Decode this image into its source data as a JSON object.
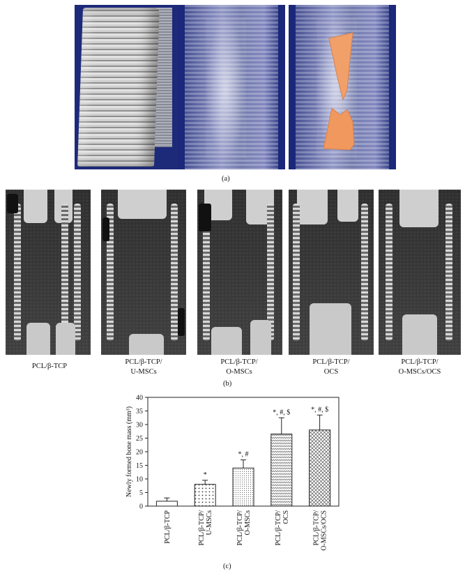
{
  "panel_labels": {
    "a": "(a)",
    "b": "(b)",
    "c": "(c)"
  },
  "panel_b_captions": [
    [
      "PCL/β-TCP"
    ],
    [
      "PCL/β-TCP/",
      "U-MSCs"
    ],
    [
      "PCL/β-TCP/",
      "O-MSCs"
    ],
    [
      "PCL/β-TCP/",
      "OCS"
    ],
    [
      "PCL/β-TCP/",
      "O-MSCs/OCS"
    ]
  ],
  "colors": {
    "render_background": "#1b2879",
    "new_bone_highlight": "#f2a06a",
    "ct_background": "#3c3c3c"
  },
  "chart_data": {
    "type": "bar",
    "ylabel": "Newly formed bone mass (mm³)",
    "ylim": [
      0,
      40
    ],
    "yticks": [
      0,
      5,
      10,
      15,
      20,
      25,
      30,
      35,
      40
    ],
    "categories": [
      [
        "PCL/β-TCP"
      ],
      [
        "PCL/β-TCP/",
        "U-MSCs"
      ],
      [
        "PCL/β-TCP/",
        "O-MSCs"
      ],
      [
        "PCL/β-TCP/",
        "OCS"
      ],
      [
        "PCL/β-TCP/",
        "O-MSCs/OCS"
      ]
    ],
    "values": [
      1.8,
      8.0,
      14.0,
      26.5,
      28.0
    ],
    "errors": [
      1.2,
      1.5,
      3.0,
      6.0,
      5.5
    ],
    "annotations": [
      "",
      "*",
      "*, #",
      "*, #, $",
      "*, #, $"
    ],
    "patterns": [
      "blank",
      "dots",
      "fine-dots",
      "zigzag",
      "crosshatch"
    ],
    "grid": false,
    "legend": "none"
  }
}
